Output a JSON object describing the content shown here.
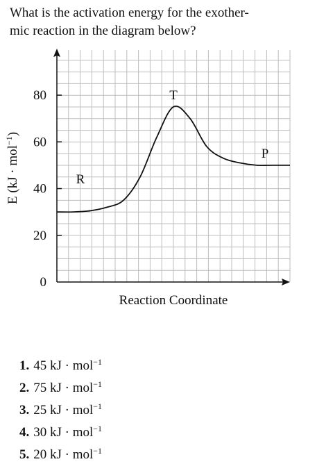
{
  "question": {
    "line1": "What is the activation energy for the exother-",
    "line2": "mic reaction in the diagram below?"
  },
  "chart_data": {
    "type": "line",
    "xlabel": "Reaction Coordinate",
    "ylabel": "E (kJ · mol",
    "ylabel_sup": "−1",
    "ylabel_tail": ")",
    "ylim": [
      0,
      90
    ],
    "yticks": [
      0,
      20,
      40,
      60,
      80
    ],
    "grid": true,
    "series": [
      {
        "values": [
          [
            0,
            30
          ],
          [
            1,
            30
          ],
          [
            2,
            30.5
          ],
          [
            3,
            32
          ],
          [
            4,
            35
          ],
          [
            5,
            45
          ],
          [
            6,
            62
          ],
          [
            7,
            75
          ],
          [
            8,
            70
          ],
          [
            9,
            58
          ],
          [
            10,
            53
          ],
          [
            11,
            51
          ],
          [
            12,
            50
          ],
          [
            13,
            50
          ],
          [
            14,
            50
          ]
        ]
      }
    ],
    "annotations": [
      {
        "text": "R",
        "at": [
          1,
          44
        ]
      },
      {
        "text": "T",
        "at": [
          7,
          80
        ]
      },
      {
        "text": "P",
        "at": [
          12.5,
          55
        ]
      }
    ]
  },
  "answers": [
    {
      "num": "1.",
      "value": "45 kJ · mol",
      "sup": "−1"
    },
    {
      "num": "2.",
      "value": "75 kJ · mol",
      "sup": "−1"
    },
    {
      "num": "3.",
      "value": "25 kJ · mol",
      "sup": "−1"
    },
    {
      "num": "4.",
      "value": "30 kJ · mol",
      "sup": "−1"
    },
    {
      "num": "5.",
      "value": "20 kJ · mol",
      "sup": "−1"
    }
  ]
}
